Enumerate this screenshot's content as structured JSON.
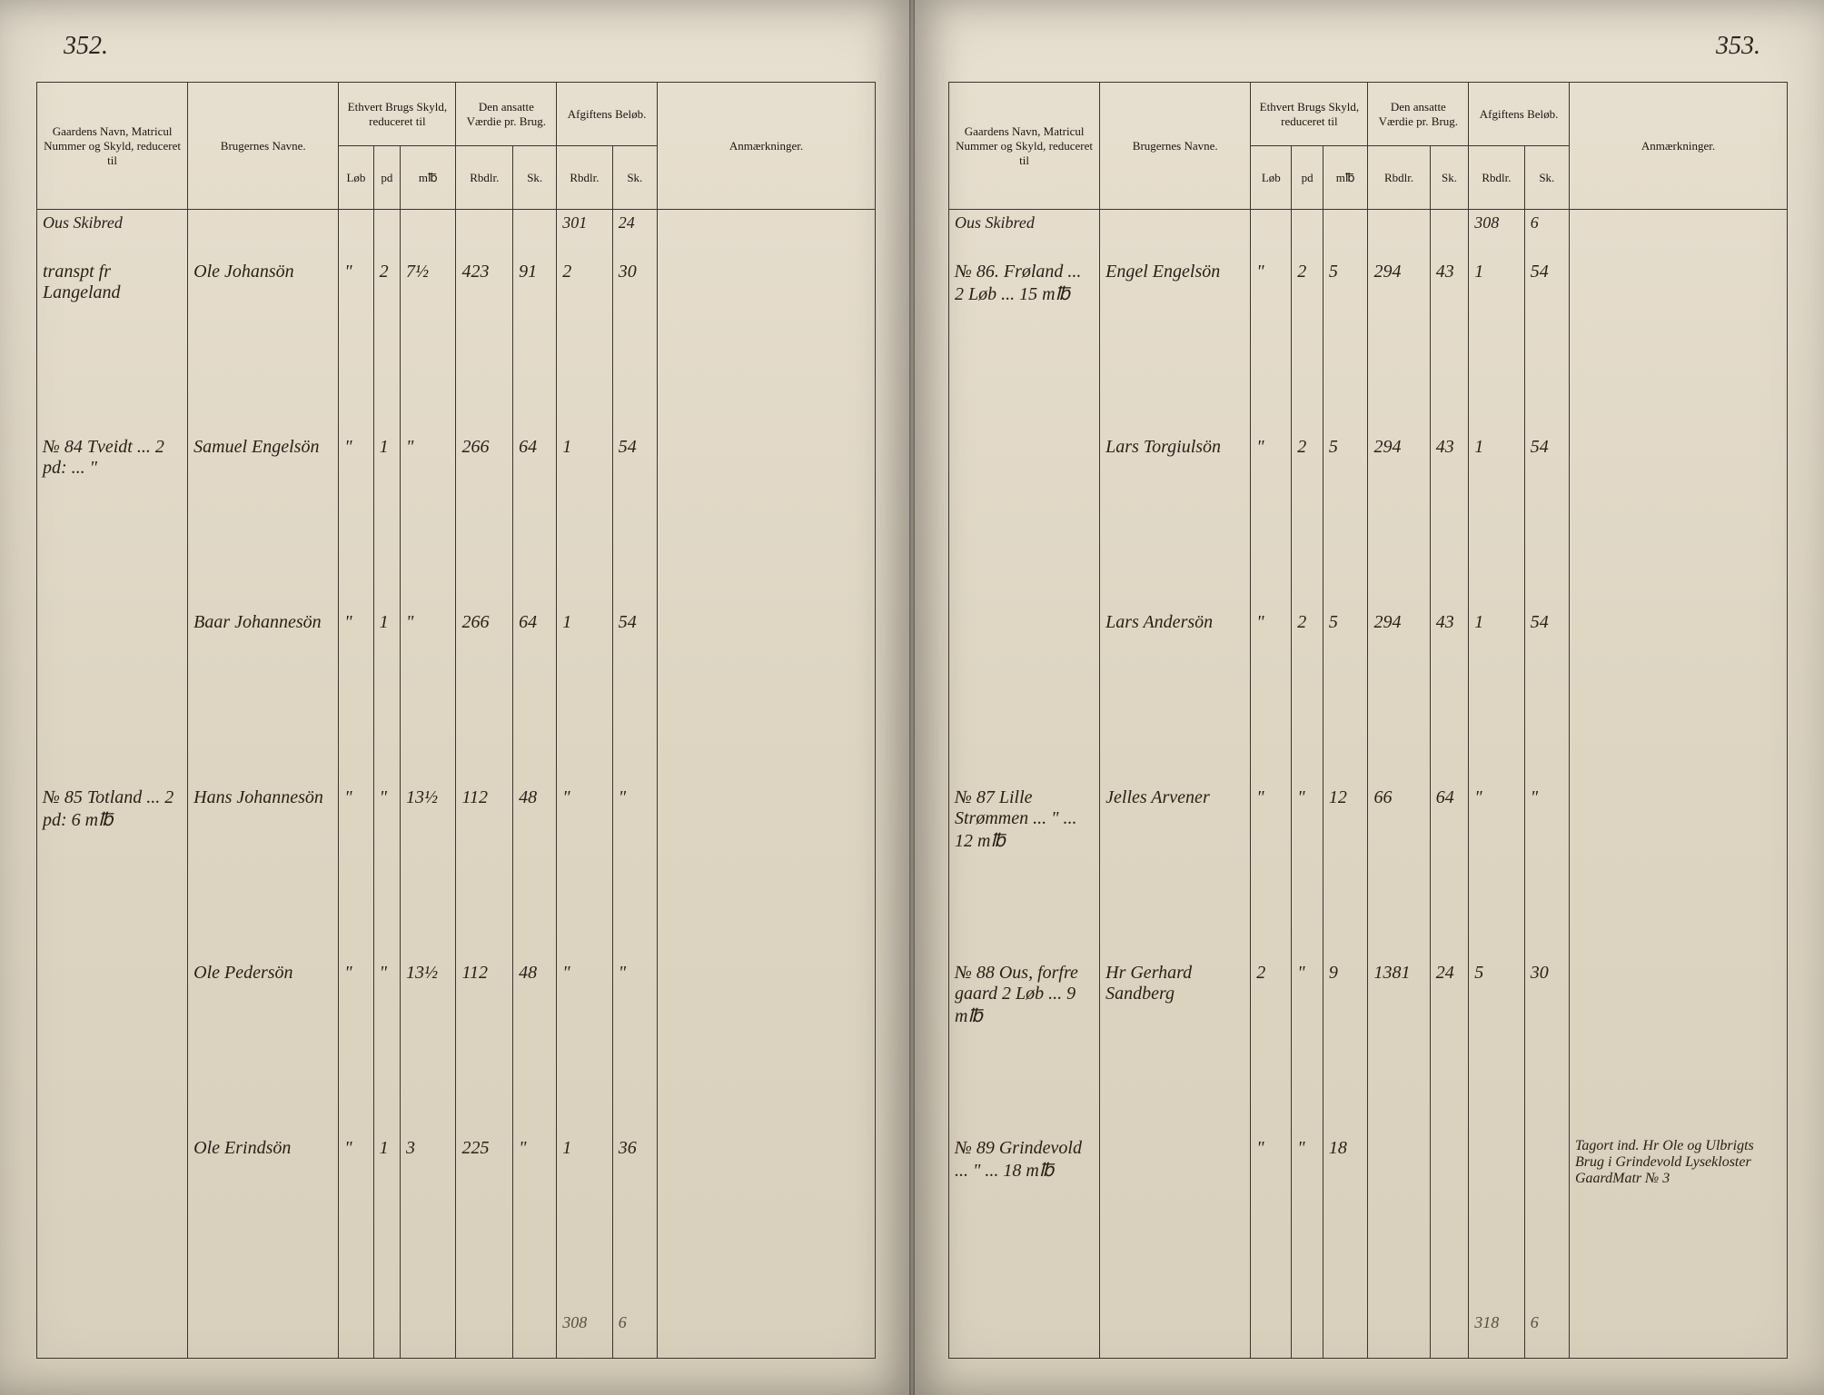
{
  "left_page": {
    "page_number": "352.",
    "headers": {
      "col1": "Gaardens Navn, Matricul Nummer og Skyld, reduceret til",
      "col2": "Brugernes Navne.",
      "col3": "Ethvert Brugs Skyld, reduceret til",
      "col3_sub": [
        "Løb",
        "pd",
        "m℔"
      ],
      "col4": "Den ansatte Værdie pr. Brug.",
      "col4_sub": [
        "Rbdlr.",
        "Sk."
      ],
      "col5": "Afgiftens Beløb.",
      "col5_sub": [
        "Rbdlr.",
        "Sk."
      ],
      "col6": "Anmærkninger."
    },
    "district": "Ous Skibred",
    "carry_forward": [
      "301",
      "24"
    ],
    "rows": [
      {
        "gaard": "transpt fr Langeland",
        "bruger": "Ole Johansön",
        "skyld": [
          "\"",
          "2",
          "7½"
        ],
        "vaerdi": [
          "423",
          "91"
        ],
        "afgift": [
          "2",
          "30"
        ]
      },
      {
        "gaard": "№ 84 Tveidt ... 2 pd: ... \"",
        "bruger": "Samuel Engelsön",
        "skyld": [
          "\"",
          "1",
          "\""
        ],
        "vaerdi": [
          "266",
          "64"
        ],
        "afgift": [
          "1",
          "54"
        ]
      },
      {
        "gaard": "",
        "bruger": "Baar Johannesön",
        "skyld": [
          "\"",
          "1",
          "\""
        ],
        "vaerdi": [
          "266",
          "64"
        ],
        "afgift": [
          "1",
          "54"
        ]
      },
      {
        "gaard": "№ 85 Totland ... 2 pd: 6 m℔",
        "bruger": "Hans Johannesön",
        "skyld": [
          "\"",
          "\"",
          "13½"
        ],
        "vaerdi": [
          "112",
          "48"
        ],
        "afgift": [
          "\"",
          "\""
        ]
      },
      {
        "gaard": "",
        "bruger": "Ole Pedersön",
        "skyld": [
          "\"",
          "\"",
          "13½"
        ],
        "vaerdi": [
          "112",
          "48"
        ],
        "afgift": [
          "\"",
          "\""
        ]
      },
      {
        "gaard": "",
        "bruger": "Ole Erindsön",
        "skyld": [
          "\"",
          "1",
          "3"
        ],
        "vaerdi": [
          "225",
          "\""
        ],
        "afgift": [
          "1",
          "36"
        ]
      }
    ],
    "total": [
      "308",
      "6"
    ]
  },
  "right_page": {
    "page_number": "353.",
    "headers": {
      "col1": "Gaardens Navn, Matricul Nummer og Skyld, reduceret til",
      "col2": "Brugernes Navne.",
      "col3": "Ethvert Brugs Skyld, reduceret til",
      "col3_sub": [
        "Løb",
        "pd",
        "m℔"
      ],
      "col4": "Den ansatte Værdie pr. Brug.",
      "col4_sub": [
        "Rbdlr.",
        "Sk."
      ],
      "col5": "Afgiftens Beløb.",
      "col5_sub": [
        "Rbdlr.",
        "Sk."
      ],
      "col6": "Anmærkninger."
    },
    "district": "Ous Skibred",
    "carry_forward": [
      "308",
      "6"
    ],
    "rows": [
      {
        "gaard": "№ 86. Frøland ... 2 Løb ... 15 m℔",
        "bruger": "Engel Engelsön",
        "skyld": [
          "\"",
          "2",
          "5"
        ],
        "vaerdi": [
          "294",
          "43"
        ],
        "afgift": [
          "1",
          "54"
        ]
      },
      {
        "gaard": "",
        "bruger": "Lars Torgiulsön",
        "skyld": [
          "\"",
          "2",
          "5"
        ],
        "vaerdi": [
          "294",
          "43"
        ],
        "afgift": [
          "1",
          "54"
        ]
      },
      {
        "gaard": "",
        "bruger": "Lars Andersön",
        "skyld": [
          "\"",
          "2",
          "5"
        ],
        "vaerdi": [
          "294",
          "43"
        ],
        "afgift": [
          "1",
          "54"
        ]
      },
      {
        "gaard": "№ 87 Lille Strømmen ... \" ... 12 m℔",
        "bruger": "Jelles Arvener",
        "skyld": [
          "\"",
          "\"",
          "12"
        ],
        "vaerdi": [
          "66",
          "64"
        ],
        "afgift": [
          "\"",
          "\""
        ]
      },
      {
        "gaard": "№ 88 Ous, forfre gaard 2 Løb ... 9 m℔",
        "bruger": "Hr Gerhard Sandberg",
        "skyld": [
          "2",
          "\"",
          "9"
        ],
        "vaerdi": [
          "1381",
          "24"
        ],
        "afgift": [
          "5",
          "30"
        ]
      },
      {
        "gaard": "№ 89 Grindevold ... \" ... 18 m℔",
        "bruger": "",
        "skyld": [
          "\"",
          "\"",
          "18"
        ],
        "vaerdi": [
          "",
          ""
        ],
        "afgift": [
          "",
          ""
        ],
        "anm": "Tagort ind. Hr Ole og Ulbrigts Brug i Grindevold Lysekloster GaardMatr № 3"
      }
    ],
    "total": [
      "318",
      "6"
    ]
  },
  "colors": {
    "paper": "#e8e0d0",
    "ink": "#2a2018",
    "rule": "#3a3530",
    "background": "#1a1410"
  }
}
